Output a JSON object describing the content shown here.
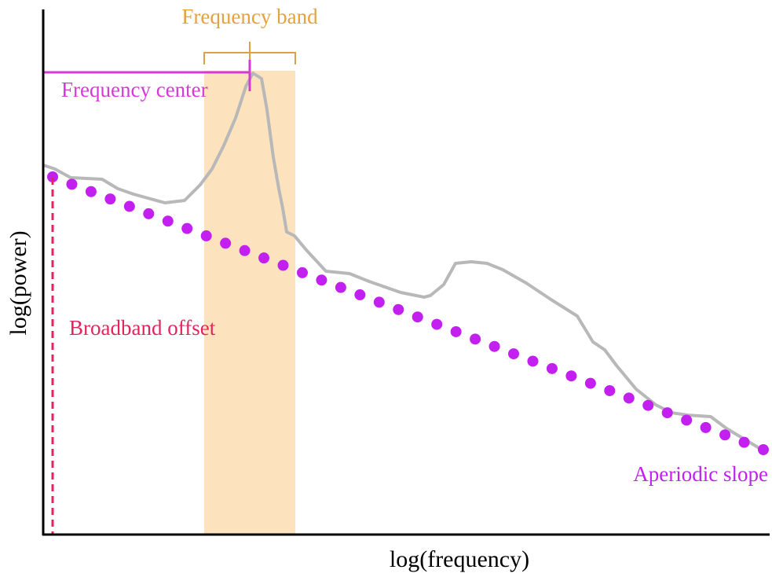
{
  "labels": {
    "frequency_band": "Frequency band",
    "frequency_center": "Frequency center",
    "broadband_offset": "Broadband offset",
    "aperiodic_slope": "Aperiodic slope"
  },
  "axes": {
    "x_label": "log(frequency)",
    "y_label": "log(power)"
  }
}
